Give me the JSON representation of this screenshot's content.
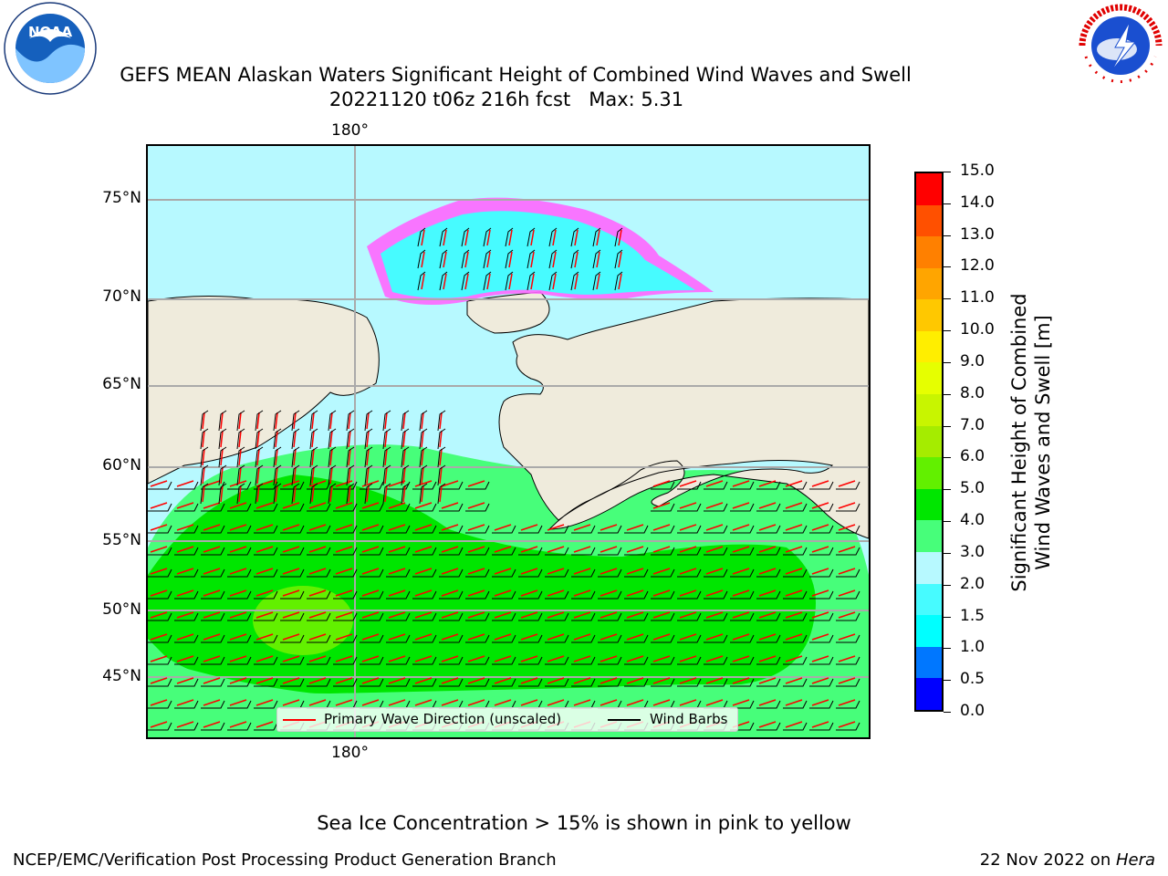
{
  "title": {
    "line1": "GEFS MEAN Alaskan Waters Significant Height of Combined Wind Waves and Swell",
    "line2": "20221120 t06z 216h fcst   Max: 5.31"
  },
  "logos": {
    "left": {
      "icon": "noaa-logo-icon",
      "text": "NOAA"
    },
    "right": {
      "icon": "nws-logo-icon",
      "text": "NATIONAL WEATHER SERVICE"
    }
  },
  "map": {
    "lon_label_top": "180°",
    "lon_label_bottom": "180°",
    "lat_labels": [
      "75°N",
      "70°N",
      "65°N",
      "60°N",
      "55°N",
      "50°N",
      "45°N"
    ],
    "land_color": "#efebdc",
    "ocean_colors": {
      "ice_free_low": "#b7f9ff",
      "mid": "#47fe7a",
      "high": "#00e600",
      "peak": "#62f000"
    }
  },
  "legend": {
    "wave_direction": "Primary Wave Direction (unscaled)",
    "wind_barbs": "Wind Barbs",
    "wave_color": "#ff0000",
    "barb_color": "#000000"
  },
  "colorbar": {
    "label_line1": "Significant Height of Combined",
    "label_line2": "Wind Waves and Swell [m]",
    "ticks": [
      "0.0",
      "0.5",
      "1.0",
      "1.5",
      "2.0",
      "3.0",
      "4.0",
      "5.0",
      "6.0",
      "7.0",
      "8.0",
      "9.0",
      "10.0",
      "11.0",
      "12.0",
      "13.0",
      "14.0",
      "15.0"
    ],
    "colors": [
      "#0000ff",
      "#0077ff",
      "#00ffff",
      "#47fbff",
      "#b7f9ff",
      "#47fe7a",
      "#00e600",
      "#62f000",
      "#a5ec00",
      "#c8f500",
      "#e6ff00",
      "#ffee00",
      "#ffc800",
      "#ffa500",
      "#ff8000",
      "#ff5000",
      "#ff0000"
    ]
  },
  "note": "Sea Ice Concentration > 15% is shown in pink to yellow",
  "footer": {
    "left": "NCEP/EMC/Verification Post Processing Product Generation Branch",
    "right_prefix": "22 Nov 2022 on ",
    "right_host": "Hera"
  }
}
